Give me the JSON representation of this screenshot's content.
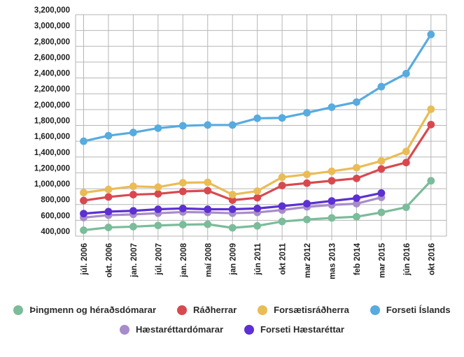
{
  "chart_data": {
    "type": "line",
    "categories": [
      "júl. 2006",
      "okt. 2006",
      "jan. 2007",
      "júl. 2007",
      "jan. 2008",
      "maí 2008",
      "jan 2009",
      "jún 2011",
      "okt 2011",
      "mar 2012",
      "mas 2013",
      "feb 2014",
      "mar 2015",
      "jún 2016",
      "okt 2016"
    ],
    "series": [
      {
        "name": "Þingmenn og héraðsdómarar",
        "color": "#7bbc9a",
        "values": [
          475000,
          510000,
          520000,
          535000,
          545000,
          550000,
          505000,
          530000,
          585000,
          610000,
          630000,
          645000,
          700000,
          765000,
          1100000
        ]
      },
      {
        "name": "Ráðherrar",
        "color": "#d8494f",
        "values": [
          850000,
          895000,
          925000,
          935000,
          965000,
          975000,
          855000,
          885000,
          1040000,
          1070000,
          1100000,
          1130000,
          1250000,
          1330000,
          1810000
        ]
      },
      {
        "name": "Forsætisráðherra",
        "color": "#eabc55",
        "values": [
          950000,
          990000,
          1030000,
          1020000,
          1075000,
          1080000,
          925000,
          970000,
          1145000,
          1180000,
          1220000,
          1265000,
          1350000,
          1470000,
          2005000
        ]
      },
      {
        "name": "Forseti Íslands",
        "color": "#57abdf",
        "values": [
          1600000,
          1670000,
          1710000,
          1765000,
          1795000,
          1805000,
          1805000,
          1890000,
          1895000,
          1960000,
          2030000,
          2095000,
          2290000,
          2455000,
          2950000
        ]
      },
      {
        "name": "Hæstaréttardómarar",
        "color": "#a88cc9",
        "values": [
          635000,
          665000,
          675000,
          690000,
          705000,
          700000,
          690000,
          700000,
          730000,
          770000,
          795000,
          810000,
          890000,
          null,
          null
        ]
      },
      {
        "name": "Forseti Hæstaréttar",
        "color": "#5c30d2",
        "values": [
          685000,
          710000,
          720000,
          740000,
          750000,
          740000,
          740000,
          750000,
          780000,
          810000,
          845000,
          880000,
          945000,
          null,
          null
        ]
      }
    ],
    "title": "",
    "xlabel": "",
    "ylabel": "",
    "ylim": [
      400000,
      3200000
    ],
    "ytick_step": 200000,
    "ytick_labels": [
      "3,200,000",
      "3,000,000",
      "2,800,000",
      "2,600,000",
      "2,400,000",
      "2,200,000",
      "2,000,000",
      "1,800,000",
      "1,600,000",
      "1,400,000",
      "1,200,000",
      "1,000,000",
      "800,000",
      "600,000",
      "400,000"
    ],
    "grid": true,
    "legend_position": "bottom",
    "legend_rows": [
      [
        0,
        1,
        2,
        3
      ],
      [
        4,
        5
      ]
    ],
    "grid_color": "#b6b6b6",
    "label_color": "#1f1f1f"
  }
}
